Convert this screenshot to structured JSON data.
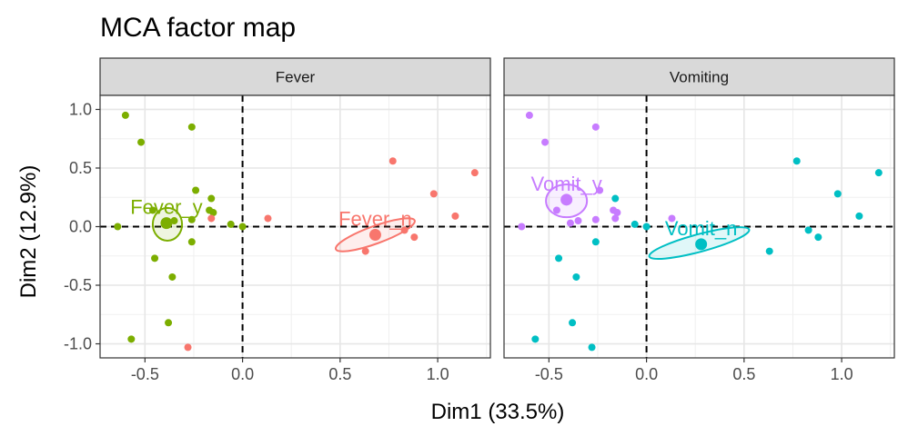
{
  "chart_data": {
    "type": "scatter",
    "title": "MCA factor map",
    "xlabel": "Dim1 (33.5%)",
    "ylabel": "Dim2 (12.9%)",
    "xlim": [
      -0.73,
      1.27
    ],
    "ylim": [
      -1.12,
      1.12
    ],
    "x_ticks": [
      -0.5,
      0.0,
      0.5,
      1.0
    ],
    "y_ticks": [
      -1.0,
      -0.5,
      0.0,
      0.5,
      1.0
    ],
    "x_tick_labels": [
      "-0.5",
      "0.0",
      "0.5",
      "1.0"
    ],
    "y_tick_labels": [
      "-1.0",
      "-0.5",
      "0.0",
      "0.5",
      "1.0"
    ],
    "grid": true,
    "reference_lines": {
      "x": 0,
      "y": 0,
      "style": "dashed"
    },
    "colors": {
      "Fever_y": "#7CAE00",
      "Fever_n": "#F8766D",
      "Vomit_y": "#C77CFF",
      "Vomit_n": "#00BFC4"
    },
    "observations": [
      {
        "x": -0.6,
        "y": 0.95,
        "fever": "Fever_y",
        "vomit": "Vomit_y"
      },
      {
        "x": -0.52,
        "y": 0.72,
        "fever": "Fever_y",
        "vomit": "Vomit_y"
      },
      {
        "x": -0.26,
        "y": 0.85,
        "fever": "Fever_y",
        "vomit": "Vomit_y"
      },
      {
        "x": -0.24,
        "y": 0.31,
        "fever": "Fever_y",
        "vomit": "Vomit_y"
      },
      {
        "x": -0.16,
        "y": 0.24,
        "fever": "Fever_y",
        "vomit": "Vomit_n"
      },
      {
        "x": -0.17,
        "y": 0.14,
        "fever": "Fever_y",
        "vomit": "Vomit_y"
      },
      {
        "x": -0.15,
        "y": 0.12,
        "fever": "Fever_y",
        "vomit": "Vomit_y"
      },
      {
        "x": -0.64,
        "y": 0.0,
        "fever": "Fever_y",
        "vomit": "Vomit_y"
      },
      {
        "x": -0.46,
        "y": 0.14,
        "fever": "Fever_y",
        "vomit": "Vomit_y"
      },
      {
        "x": -0.39,
        "y": 0.03,
        "fever": "Fever_y",
        "vomit": "Vomit_y"
      },
      {
        "x": -0.35,
        "y": 0.05,
        "fever": "Fever_y",
        "vomit": "Vomit_y"
      },
      {
        "x": -0.26,
        "y": 0.06,
        "fever": "Fever_y",
        "vomit": "Vomit_y"
      },
      {
        "x": -0.06,
        "y": 0.02,
        "fever": "Fever_y",
        "vomit": "Vomit_n"
      },
      {
        "x": 0.0,
        "y": 0.0,
        "fever": "Fever_y",
        "vomit": "Vomit_n"
      },
      {
        "x": -0.45,
        "y": -0.27,
        "fever": "Fever_y",
        "vomit": "Vomit_n"
      },
      {
        "x": -0.26,
        "y": -0.13,
        "fever": "Fever_y",
        "vomit": "Vomit_n"
      },
      {
        "x": -0.36,
        "y": -0.43,
        "fever": "Fever_y",
        "vomit": "Vomit_n"
      },
      {
        "x": -0.38,
        "y": -0.82,
        "fever": "Fever_y",
        "vomit": "Vomit_n"
      },
      {
        "x": -0.57,
        "y": -0.96,
        "fever": "Fever_y",
        "vomit": "Vomit_n"
      },
      {
        "x": -0.28,
        "y": -1.03,
        "fever": "Fever_n",
        "vomit": "Vomit_n"
      },
      {
        "x": -0.16,
        "y": 0.07,
        "fever": "Fever_n",
        "vomit": "Vomit_y"
      },
      {
        "x": 0.13,
        "y": 0.07,
        "fever": "Fever_n",
        "vomit": "Vomit_y"
      },
      {
        "x": 0.77,
        "y": 0.56,
        "fever": "Fever_n",
        "vomit": "Vomit_n"
      },
      {
        "x": 1.19,
        "y": 0.46,
        "fever": "Fever_n",
        "vomit": "Vomit_n"
      },
      {
        "x": 0.98,
        "y": 0.28,
        "fever": "Fever_n",
        "vomit": "Vomit_n"
      },
      {
        "x": 1.09,
        "y": 0.09,
        "fever": "Fever_n",
        "vomit": "Vomit_n"
      },
      {
        "x": 0.83,
        "y": -0.03,
        "fever": "Fever_n",
        "vomit": "Vomit_n"
      },
      {
        "x": 0.88,
        "y": -0.09,
        "fever": "Fever_n",
        "vomit": "Vomit_n"
      },
      {
        "x": 0.63,
        "y": -0.21,
        "fever": "Fever_n",
        "vomit": "Vomit_n"
      }
    ],
    "panels": [
      {
        "strip": "Fever",
        "variable": "fever",
        "categories": [
          {
            "name": "Fever_y",
            "label": "Fever_y",
            "centroid": {
              "x": -0.39,
              "y": 0.03
            },
            "ellipse": {
              "cx": -0.385,
              "cy": 0.02,
              "rx": 0.075,
              "ry": 0.14,
              "angle": 0
            }
          },
          {
            "name": "Fever_n",
            "label": "Fever_n",
            "centroid": {
              "x": 0.68,
              "y": -0.07
            },
            "ellipse": {
              "cx": 0.68,
              "cy": -0.07,
              "rx": 0.215,
              "ry": 0.075,
              "angle": 20
            }
          }
        ]
      },
      {
        "strip": "Vomiting",
        "variable": "vomit",
        "categories": [
          {
            "name": "Vomit_y",
            "label": "Vomit_y",
            "centroid": {
              "x": -0.41,
              "y": 0.23
            },
            "ellipse": {
              "cx": -0.41,
              "cy": 0.22,
              "rx": 0.105,
              "ry": 0.14,
              "angle": 0
            }
          },
          {
            "name": "Vomit_n",
            "label": "Vomit_n",
            "centroid": {
              "x": 0.28,
              "y": -0.15
            },
            "ellipse": {
              "cx": 0.27,
              "cy": -0.14,
              "rx": 0.265,
              "ry": 0.075,
              "angle": 15
            }
          }
        ]
      }
    ]
  }
}
